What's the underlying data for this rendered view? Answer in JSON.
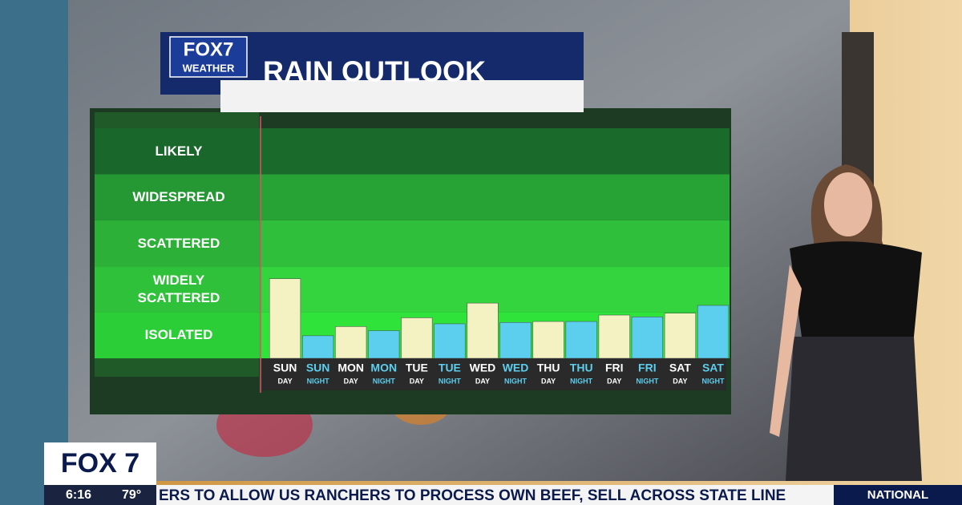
{
  "header": {
    "logo": "FOX7",
    "logo_sub": "WEATHER"
  },
  "chart_data": {
    "type": "bar",
    "title": "RAIN OUTLOOK",
    "categories": [
      "SUN",
      "SUN",
      "MON",
      "MON",
      "TUE",
      "TUE",
      "WED",
      "WED",
      "THU",
      "THU",
      "FRI",
      "FRI",
      "SAT",
      "SAT"
    ],
    "periods": [
      "DAY",
      "NIGHT",
      "DAY",
      "NIGHT",
      "DAY",
      "NIGHT",
      "DAY",
      "NIGHT",
      "DAY",
      "NIGHT",
      "DAY",
      "NIGHT",
      "DAY",
      "NIGHT"
    ],
    "values": [
      1.73,
      0.49,
      0.69,
      0.6,
      0.88,
      0.75,
      1.2,
      0.78,
      0.8,
      0.8,
      0.94,
      0.9,
      0.98,
      1.15
    ],
    "colors": [
      "#f4f1c2",
      "#5ccfee",
      "#f4f1c2",
      "#5ccfee",
      "#f4f1c2",
      "#5ccfee",
      "#f4f1c2",
      "#5ccfee",
      "#f4f1c2",
      "#5ccfee",
      "#f4f1c2",
      "#5ccfee",
      "#f4f1c2",
      "#5ccfee"
    ],
    "ylim": [
      0,
      5
    ],
    "yticks": [
      {
        "value": 0.5,
        "label": "ISOLATED"
      },
      {
        "value": 1.5,
        "label": "WIDELY SCATTERED"
      },
      {
        "value": 2.5,
        "label": "SCATTERED"
      },
      {
        "value": 3.5,
        "label": "WIDESPREAD"
      },
      {
        "value": 4.5,
        "label": "LIKELY"
      }
    ],
    "band_colors": [
      "#2fe33a",
      "#33d43d",
      "#2fbf3a",
      "#27a336",
      "#1a6a2b"
    ]
  },
  "lower_third": {
    "station": "FOX 7",
    "time": "6:16",
    "temperature": "79°",
    "ticker": "ERS TO ALLOW US RANCHERS TO PROCESS OWN BEEF, SELL ACROSS STATE LINE",
    "section": "NATIONAL"
  }
}
